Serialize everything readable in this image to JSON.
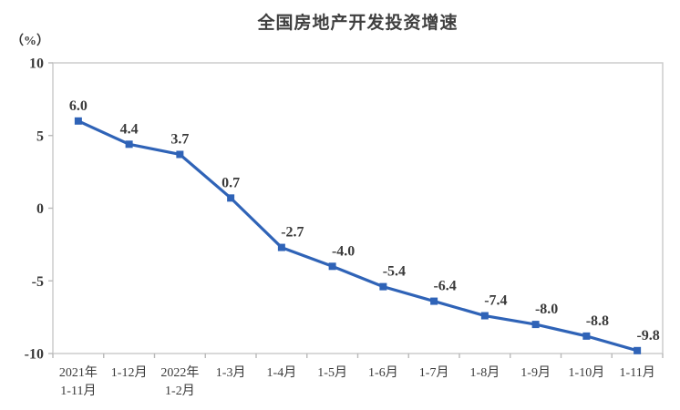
{
  "chart_data": {
    "type": "line",
    "title": "全国房地产开发投资增速",
    "unit_label": "（%）",
    "categories": [
      {
        "line1": "2021年",
        "line2": "1-11月"
      },
      {
        "line1": "1-12月",
        "line2": ""
      },
      {
        "line1": "2022年",
        "line2": "1-2月"
      },
      {
        "line1": "1-3月",
        "line2": ""
      },
      {
        "line1": "1-4月",
        "line2": ""
      },
      {
        "line1": "1-5月",
        "line2": ""
      },
      {
        "line1": "1-6月",
        "line2": ""
      },
      {
        "line1": "1-7月",
        "line2": ""
      },
      {
        "line1": "1-8月",
        "line2": ""
      },
      {
        "line1": "1-9月",
        "line2": ""
      },
      {
        "line1": "1-10月",
        "line2": ""
      },
      {
        "line1": "1-11月",
        "line2": ""
      }
    ],
    "series": [
      {
        "name": "全国房地产开发投资增速",
        "values": [
          6.0,
          4.4,
          3.7,
          0.7,
          -2.7,
          -4.0,
          -5.4,
          -6.4,
          -7.4,
          -8.0,
          -8.8,
          -9.8
        ]
      }
    ],
    "ylim": [
      -10,
      10
    ],
    "yticks": [
      10,
      5,
      0,
      -5,
      -10
    ],
    "grid": false,
    "legend": "none",
    "marker": "square",
    "colors": {
      "line": "#2f63b7",
      "marker": "#2f63b7",
      "axis": "#c9c9c9",
      "tick": "#b9b9b9",
      "text": "#3a3a3a",
      "title": "#3f3f3f"
    }
  }
}
